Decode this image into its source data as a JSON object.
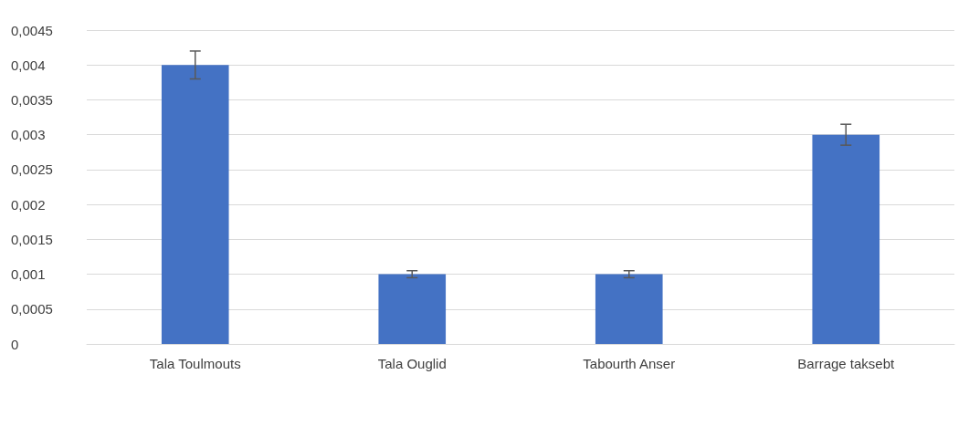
{
  "chart_data": {
    "type": "bar",
    "categories": [
      "Tala Toulmouts",
      "Tala Ouglid",
      "Tabourth Anser",
      "Barrage taksebt"
    ],
    "values": [
      0.004,
      0.001,
      0.001,
      0.003
    ],
    "errors": [
      0.0002,
      5e-05,
      5e-05,
      0.00015
    ],
    "color": "#4472c4",
    "ylim": [
      0,
      0.0045
    ],
    "yticks": [
      0,
      {
        "value": 0.0005,
        "label": "0,0005"
      },
      {
        "value": 0.001,
        "label": "0,001"
      },
      {
        "value": 0.0015,
        "label": "0,0015"
      },
      {
        "value": 0.002,
        "label": "0,002"
      },
      {
        "value": 0.0025,
        "label": "0,0025"
      },
      {
        "value": 0.003,
        "label": "0,003"
      },
      {
        "value": 0.0035,
        "label": "0,0035"
      },
      {
        "value": 0.004,
        "label": "0,004"
      },
      {
        "value": 0.0045,
        "label": "0,0045"
      }
    ],
    "grid": "y"
  }
}
